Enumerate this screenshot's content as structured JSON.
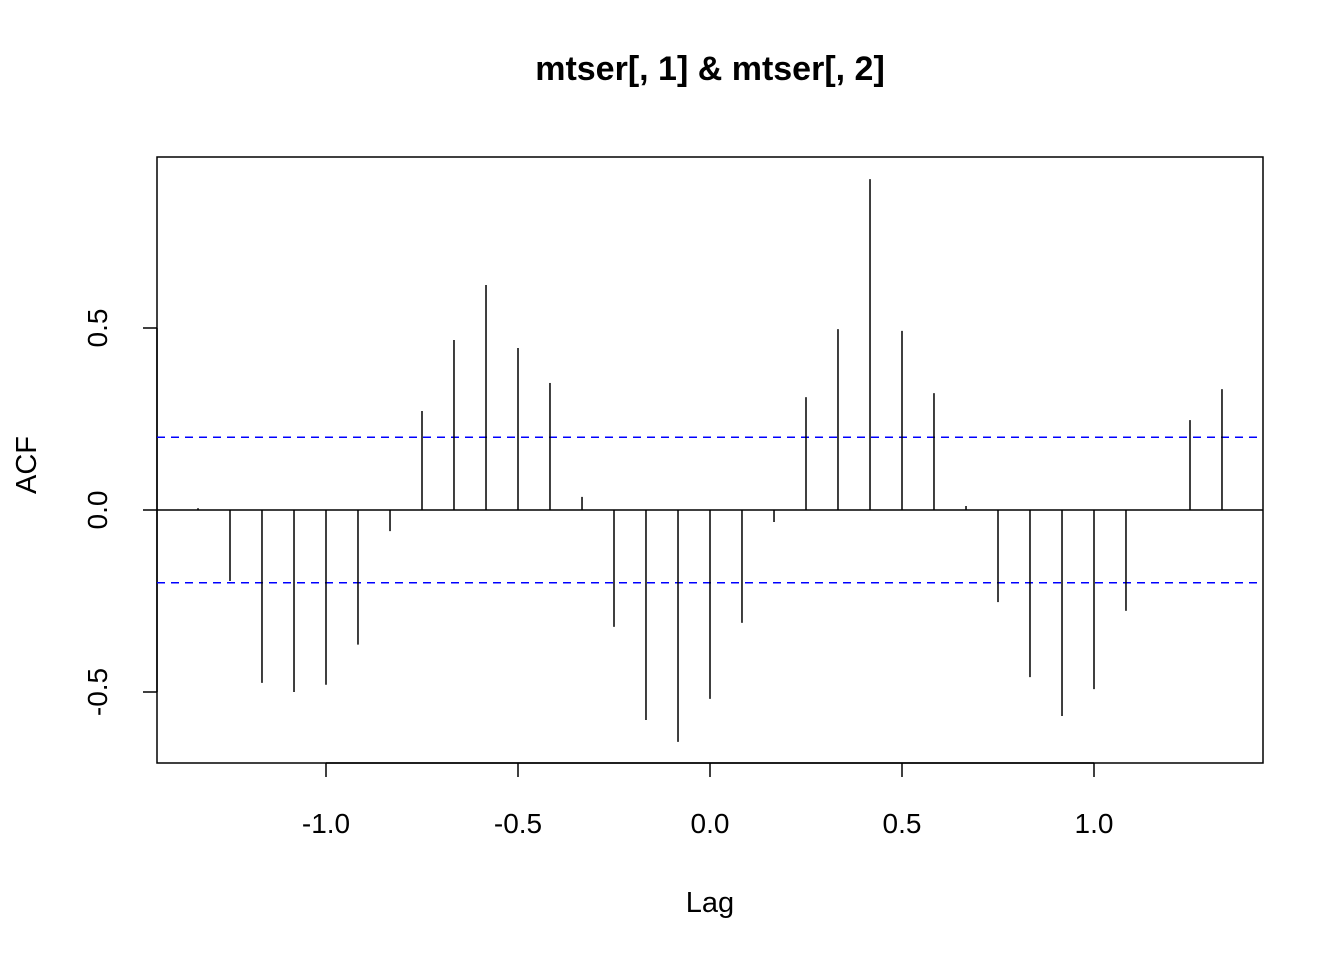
{
  "chart_data": {
    "type": "bar",
    "style": "ccf-spikes",
    "title": "mtser[, 1] & mtser[, 2]",
    "xlabel": "Lag",
    "ylabel": "ACF",
    "xlim": [
      -1.44,
      1.44
    ],
    "ylim": [
      -0.695,
      0.97
    ],
    "xticks": [
      -1.0,
      -0.5,
      0.0,
      0.5,
      1.0
    ],
    "xtick_labels": [
      "-1.0",
      "-0.5",
      "0.0",
      "0.5",
      "1.0"
    ],
    "yticks": [
      -0.5,
      0.0,
      0.5
    ],
    "ytick_labels": [
      "-0.5",
      "0.0",
      "0.5"
    ],
    "confidence_bound": 0.2,
    "confidence_color": "#0000ff",
    "lag_step": 0.08333,
    "lags": [
      -1.3333,
      -1.25,
      -1.1667,
      -1.0833,
      -1.0,
      -0.9167,
      -0.8333,
      -0.75,
      -0.6667,
      -0.5833,
      -0.5,
      -0.4167,
      -0.3333,
      -0.25,
      -0.1667,
      -0.0833,
      0.0,
      0.0833,
      0.1667,
      0.25,
      0.3333,
      0.4167,
      0.5,
      0.5833,
      0.6667,
      0.75,
      0.8333,
      0.9167,
      1.0,
      1.0833,
      1.1667,
      1.25,
      1.3333
    ],
    "values": [
      0.005,
      -0.195,
      -0.475,
      -0.5,
      -0.48,
      -0.37,
      -0.058,
      0.272,
      0.467,
      0.618,
      0.445,
      0.349,
      0.036,
      -0.321,
      -0.577,
      -0.637,
      -0.519,
      -0.31,
      -0.033,
      0.31,
      0.497,
      0.909,
      0.492,
      0.321,
      0.011,
      -0.253,
      -0.459,
      -0.566,
      -0.492,
      -0.277,
      0.0,
      0.247,
      0.332
    ],
    "grid": false
  }
}
